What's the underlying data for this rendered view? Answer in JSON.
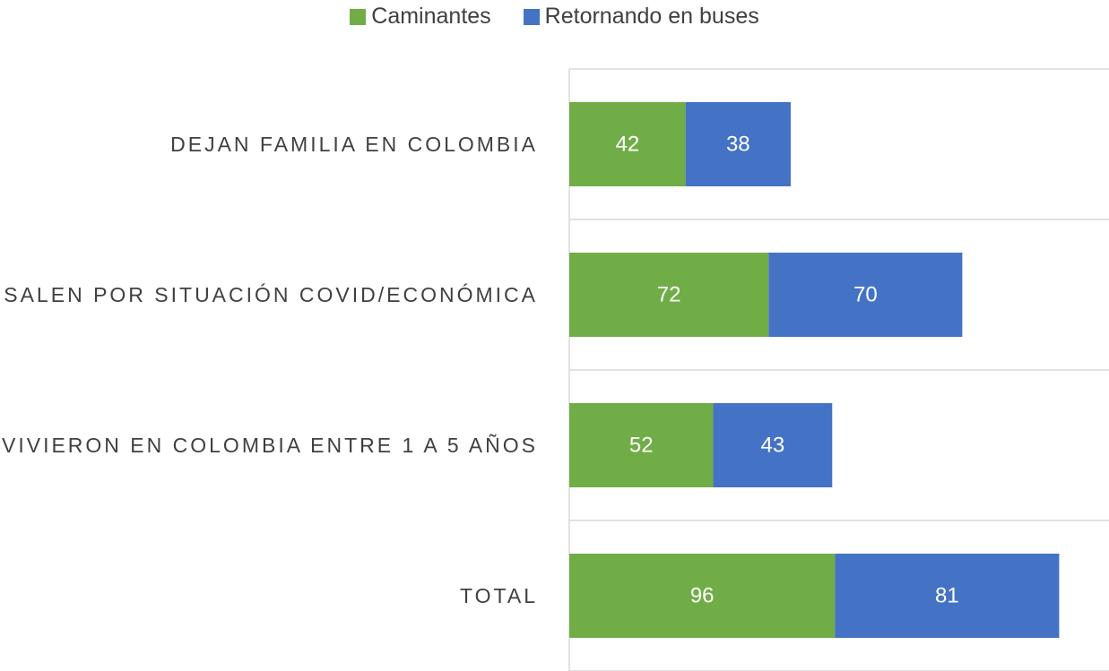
{
  "chart_data": {
    "type": "stacked_barh",
    "categories": [
      "DEJAN FAMILIA EN COLOMBIA",
      "SALEN POR SITUACIÓN COVID/ECONÓMICA",
      "VIVIERON EN COLOMBIA ENTRE 1 A 5 AÑOS",
      "TOTAL"
    ],
    "series": [
      {
        "name": "Caminantes",
        "color": "#70ad47",
        "values": [
          42,
          72,
          52,
          96
        ]
      },
      {
        "name": "Retornando en buses",
        "color": "#4472c4",
        "values": [
          38,
          70,
          43,
          81
        ]
      }
    ],
    "xlim": [
      0,
      195
    ],
    "legend": "top"
  }
}
